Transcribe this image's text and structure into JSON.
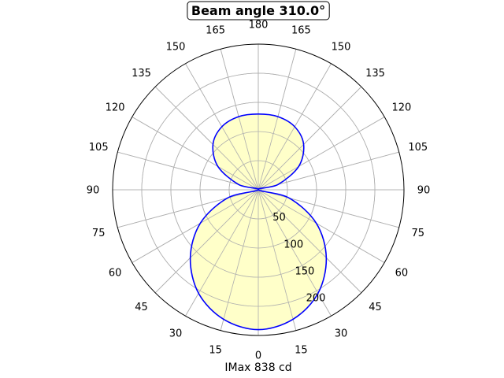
{
  "chart_data": {
    "type": "polar-area",
    "title": "Beam angle 310.0°",
    "xlabel": "IMax 838 cd",
    "angle_tick_labels": [
      "0",
      "15",
      "30",
      "45",
      "60",
      "75",
      "90",
      "105",
      "120",
      "135",
      "150",
      "165",
      "180",
      "165",
      "150",
      "135",
      "120",
      "105",
      "90",
      "75",
      "60",
      "45",
      "30",
      "15"
    ],
    "radial_tick_labels": [
      "50",
      "100",
      "150",
      "200"
    ],
    "radial_ticks": [
      50,
      100,
      150,
      200
    ],
    "rmax": 250,
    "grid": true,
    "series": [
      {
        "gamma_deg": [
          0,
          15,
          30,
          45,
          60,
          75,
          90,
          105,
          120,
          135,
          150,
          165,
          180
        ],
        "intensity": [
          240,
          230,
          205,
          165,
          115,
          55,
          0,
          35,
          80,
          110,
          125,
          130,
          130
        ]
      }
    ],
    "colors": {
      "line": "#0000ff",
      "fill": "#ffffc0",
      "grid": "#b0b0b0",
      "frame": "#000000"
    }
  }
}
